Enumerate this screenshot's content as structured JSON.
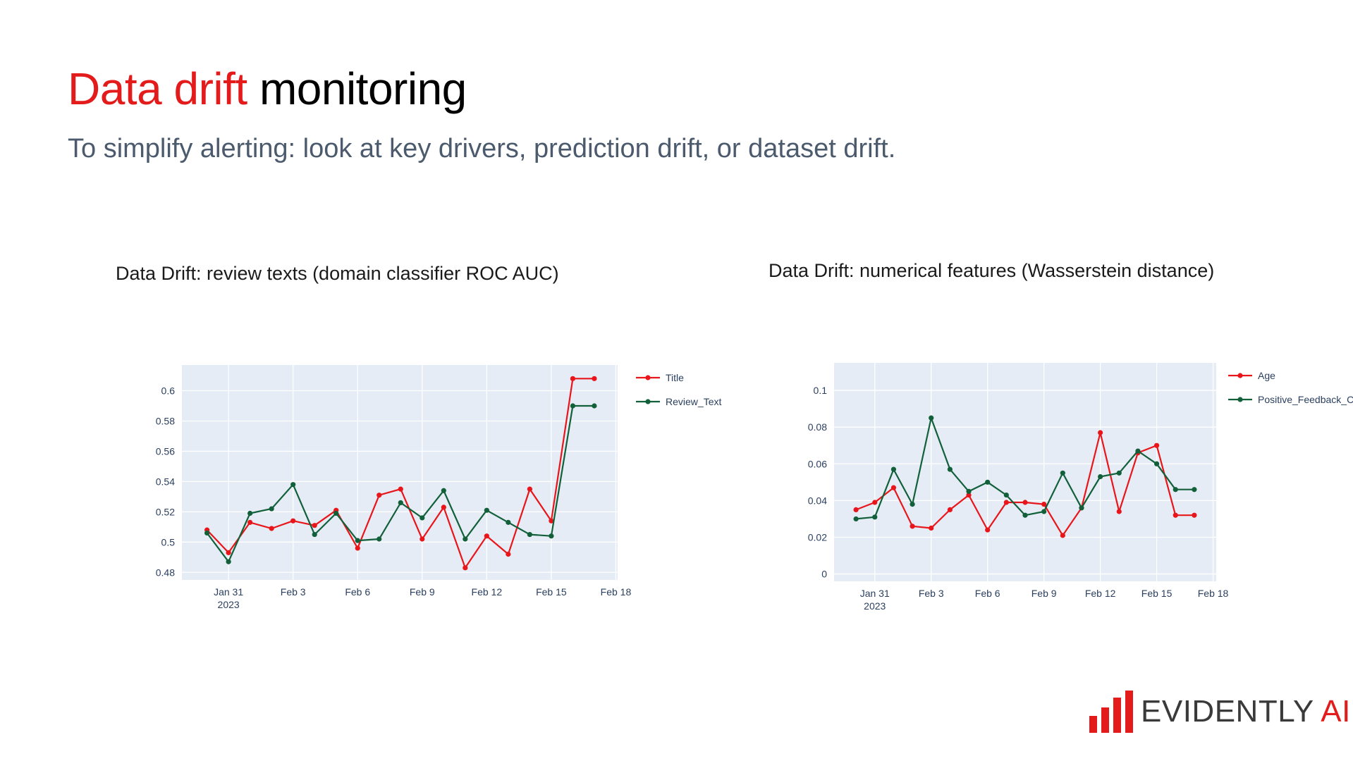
{
  "slide": {
    "title_accent": "Data drift",
    "title_rest": "monitoring",
    "subtitle": "To simplify alerting: look at key drivers, prediction drift, or dataset drift."
  },
  "logo": {
    "text_main": "EVIDENTLY ",
    "text_accent": "AI",
    "icon": "bar-chart-logo-icon"
  },
  "colors": {
    "accent": "#e31b1b",
    "series_red": "#e8161a",
    "series_green": "#12603a",
    "plot_bg": "#e5ecf6",
    "subtitle": "#4b5a6c"
  },
  "chart_data": [
    {
      "type": "line",
      "title": "Data Drift: review texts (domain classifier ROC AUC)",
      "x_ticks": [
        "Jan 31",
        "Feb 3",
        "Feb 6",
        "Feb 9",
        "Feb 12",
        "Feb 15",
        "Feb 18"
      ],
      "x_tick_sublabel": "2023",
      "y_ticks": [
        "0.48",
        "0.5",
        "0.52",
        "0.54",
        "0.56",
        "0.58",
        "0.6"
      ],
      "xlim": [
        "2023-01-28T20:00",
        "2023-02-18T02:00"
      ],
      "ylim": [
        0.475,
        0.617
      ],
      "x": [
        "2023-01-30",
        "2023-01-31",
        "2023-02-01",
        "2023-02-02",
        "2023-02-03",
        "2023-02-04",
        "2023-02-05",
        "2023-02-06",
        "2023-02-07",
        "2023-02-08",
        "2023-02-09",
        "2023-02-10",
        "2023-02-11",
        "2023-02-12",
        "2023-02-13",
        "2023-02-14",
        "2023-02-15",
        "2023-02-16",
        "2023-02-17"
      ],
      "legend_position": "right",
      "grid": true,
      "series": [
        {
          "name": "Title",
          "color": "#e8161a",
          "values": [
            0.508,
            0.493,
            0.513,
            0.509,
            0.514,
            0.511,
            0.521,
            0.496,
            0.531,
            0.535,
            0.502,
            0.523,
            0.483,
            0.504,
            0.492,
            0.535,
            0.514,
            0.608,
            0.608
          ]
        },
        {
          "name": "Review_Text",
          "color": "#12603a",
          "values": [
            0.506,
            0.487,
            0.519,
            0.522,
            0.538,
            0.505,
            0.519,
            0.501,
            0.502,
            0.526,
            0.516,
            0.534,
            0.502,
            0.521,
            0.513,
            0.505,
            0.504,
            0.59,
            0.59
          ]
        }
      ]
    },
    {
      "type": "line",
      "title": "Data Drift: numerical features (Wasserstein distance)",
      "x_ticks": [
        "Jan 31",
        "Feb 3",
        "Feb 6",
        "Feb 9",
        "Feb 12",
        "Feb 15",
        "Feb 18"
      ],
      "x_tick_sublabel": "2023",
      "y_ticks": [
        "0",
        "0.02",
        "0.04",
        "0.06",
        "0.08",
        "0.1"
      ],
      "xlim": [
        "2023-01-28T20:00",
        "2023-02-18T04:00"
      ],
      "ylim": [
        -0.004,
        0.115
      ],
      "x": [
        "2023-01-30",
        "2023-01-31",
        "2023-02-01",
        "2023-02-02",
        "2023-02-03",
        "2023-02-04",
        "2023-02-05",
        "2023-02-06",
        "2023-02-07",
        "2023-02-08",
        "2023-02-09",
        "2023-02-10",
        "2023-02-11",
        "2023-02-12",
        "2023-02-13",
        "2023-02-14",
        "2023-02-15",
        "2023-02-16",
        "2023-02-17"
      ],
      "legend_position": "right",
      "grid": true,
      "series": [
        {
          "name": "Age",
          "color": "#e8161a",
          "values": [
            0.035,
            0.039,
            0.047,
            0.026,
            0.025,
            0.035,
            0.043,
            0.024,
            0.039,
            0.039,
            0.038,
            0.021,
            0.036,
            0.077,
            0.034,
            0.066,
            0.07,
            0.032,
            0.032
          ]
        },
        {
          "name": "Positive_Feedback_C",
          "color": "#12603a",
          "values": [
            0.03,
            0.031,
            0.057,
            0.038,
            0.085,
            0.057,
            0.045,
            0.05,
            0.043,
            0.032,
            0.034,
            0.055,
            0.036,
            0.053,
            0.055,
            0.067,
            0.06,
            0.046,
            0.046
          ]
        }
      ]
    }
  ]
}
